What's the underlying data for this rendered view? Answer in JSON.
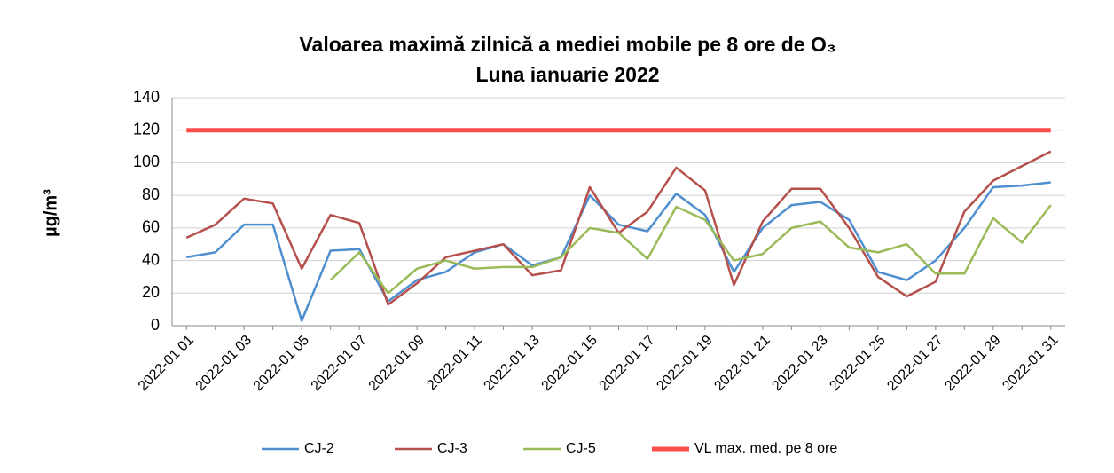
{
  "chart_data": {
    "type": "line",
    "title": "Valoarea maximă zilnică a mediei mobile pe 8 ore de O₃",
    "subtitle": "Luna ianuarie 2022",
    "y_label": "µg/m³",
    "categories": [
      "2022-01 01",
      null,
      "2022-01 03",
      null,
      "2022-01 05",
      null,
      "2022-01 07",
      null,
      "2022-01 09",
      null,
      "2022-01 11",
      null,
      "2022-01 13",
      null,
      "2022-01 15",
      null,
      "2022-01 17",
      null,
      "2022-01 19",
      null,
      "2022-01 21",
      null,
      "2022-01 23",
      null,
      "2022-01 25",
      null,
      "2022-01 27",
      null,
      "2022-01 29",
      null,
      "2022-01 31"
    ],
    "series": [
      {
        "name": "CJ-2",
        "color": "#4f8fcf",
        "values": [
          42,
          45,
          62,
          62,
          3,
          46,
          47,
          15,
          28,
          33,
          45,
          50,
          37,
          42,
          80,
          62,
          58,
          81,
          68,
          33,
          60,
          74,
          76,
          65,
          33,
          28,
          40,
          60,
          85,
          86,
          88
        ]
      },
      {
        "name": "CJ-3",
        "color": "#b5504d",
        "values": [
          54,
          62,
          78,
          75,
          35,
          68,
          63,
          13,
          26,
          42,
          46,
          50,
          31,
          34,
          85,
          57,
          70,
          97,
          83,
          25,
          64,
          84,
          84,
          60,
          30,
          18,
          27,
          70,
          89,
          98,
          107
        ]
      },
      {
        "name": "CJ-5",
        "color": "#9bbb59",
        "values": [
          null,
          null,
          null,
          null,
          null,
          28,
          45,
          20,
          35,
          40,
          35,
          36,
          36,
          42,
          60,
          57,
          41,
          73,
          65,
          40,
          44,
          60,
          64,
          48,
          45,
          50,
          32,
          32,
          66,
          51,
          74
        ]
      },
      {
        "name": "VL max. med. pe 8 ore",
        "color": "#ff4d4d",
        "values": [
          120,
          120,
          120,
          120,
          120,
          120,
          120,
          120,
          120,
          120,
          120,
          120,
          120,
          120,
          120,
          120,
          120,
          120,
          120,
          120,
          120,
          120,
          120,
          120,
          120,
          120,
          120,
          120,
          120,
          120,
          120
        ]
      }
    ],
    "ylim": [
      0,
      140
    ],
    "yticks": [
      0,
      20,
      40,
      60,
      80,
      100,
      120,
      140
    ],
    "grid": true,
    "legend": "bottom"
  }
}
